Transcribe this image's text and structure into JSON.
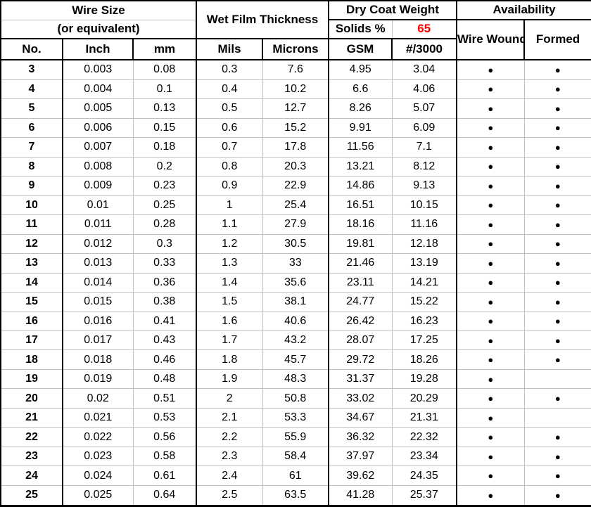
{
  "table": {
    "dot_char": "●",
    "colors": {
      "solids_value_color": "#ff0000",
      "grid_gray": "#c0c0c0",
      "line_black": "#000000",
      "background": "#ffffff"
    },
    "header": {
      "wire_size_line1": "Wire Size",
      "wire_size_line2": "(or equivalent)",
      "wet_film": "Wet Film Thickness",
      "dry_coat": "Dry Coat Weight",
      "solids_label": "Solids %",
      "solids_value": "65",
      "availability": "Availability",
      "col_no": "No.",
      "col_inch": "Inch",
      "col_mm": "mm",
      "col_mils": "Mils",
      "col_microns": "Microns",
      "col_gsm": "GSM",
      "col_per3000": "#/3000",
      "col_wire_wound": "Wire Wound",
      "col_formed": "Formed"
    },
    "rows": [
      {
        "no": "3",
        "inch": "0.003",
        "mm": "0.08",
        "mils": "0.3",
        "microns": "7.6",
        "gsm": "4.95",
        "per3000": "3.04",
        "wire_wound": true,
        "formed": true
      },
      {
        "no": "4",
        "inch": "0.004",
        "mm": "0.1",
        "mils": "0.4",
        "microns": "10.2",
        "gsm": "6.6",
        "per3000": "4.06",
        "wire_wound": true,
        "formed": true
      },
      {
        "no": "5",
        "inch": "0.005",
        "mm": "0.13",
        "mils": "0.5",
        "microns": "12.7",
        "gsm": "8.26",
        "per3000": "5.07",
        "wire_wound": true,
        "formed": true
      },
      {
        "no": "6",
        "inch": "0.006",
        "mm": "0.15",
        "mils": "0.6",
        "microns": "15.2",
        "gsm": "9.91",
        "per3000": "6.09",
        "wire_wound": true,
        "formed": true
      },
      {
        "no": "7",
        "inch": "0.007",
        "mm": "0.18",
        "mils": "0.7",
        "microns": "17.8",
        "gsm": "11.56",
        "per3000": "7.1",
        "wire_wound": true,
        "formed": true
      },
      {
        "no": "8",
        "inch": "0.008",
        "mm": "0.2",
        "mils": "0.8",
        "microns": "20.3",
        "gsm": "13.21",
        "per3000": "8.12",
        "wire_wound": true,
        "formed": true
      },
      {
        "no": "9",
        "inch": "0.009",
        "mm": "0.23",
        "mils": "0.9",
        "microns": "22.9",
        "gsm": "14.86",
        "per3000": "9.13",
        "wire_wound": true,
        "formed": true
      },
      {
        "no": "10",
        "inch": "0.01",
        "mm": "0.25",
        "mils": "1",
        "microns": "25.4",
        "gsm": "16.51",
        "per3000": "10.15",
        "wire_wound": true,
        "formed": true
      },
      {
        "no": "11",
        "inch": "0.011",
        "mm": "0.28",
        "mils": "1.1",
        "microns": "27.9",
        "gsm": "18.16",
        "per3000": "11.16",
        "wire_wound": true,
        "formed": true
      },
      {
        "no": "12",
        "inch": "0.012",
        "mm": "0.3",
        "mils": "1.2",
        "microns": "30.5",
        "gsm": "19.81",
        "per3000": "12.18",
        "wire_wound": true,
        "formed": true
      },
      {
        "no": "13",
        "inch": "0.013",
        "mm": "0.33",
        "mils": "1.3",
        "microns": "33",
        "gsm": "21.46",
        "per3000": "13.19",
        "wire_wound": true,
        "formed": true
      },
      {
        "no": "14",
        "inch": "0.014",
        "mm": "0.36",
        "mils": "1.4",
        "microns": "35.6",
        "gsm": "23.11",
        "per3000": "14.21",
        "wire_wound": true,
        "formed": true
      },
      {
        "no": "15",
        "inch": "0.015",
        "mm": "0.38",
        "mils": "1.5",
        "microns": "38.1",
        "gsm": "24.77",
        "per3000": "15.22",
        "wire_wound": true,
        "formed": true
      },
      {
        "no": "16",
        "inch": "0.016",
        "mm": "0.41",
        "mils": "1.6",
        "microns": "40.6",
        "gsm": "26.42",
        "per3000": "16.23",
        "wire_wound": true,
        "formed": true
      },
      {
        "no": "17",
        "inch": "0.017",
        "mm": "0.43",
        "mils": "1.7",
        "microns": "43.2",
        "gsm": "28.07",
        "per3000": "17.25",
        "wire_wound": true,
        "formed": true
      },
      {
        "no": "18",
        "inch": "0.018",
        "mm": "0.46",
        "mils": "1.8",
        "microns": "45.7",
        "gsm": "29.72",
        "per3000": "18.26",
        "wire_wound": true,
        "formed": true
      },
      {
        "no": "19",
        "inch": "0.019",
        "mm": "0.48",
        "mils": "1.9",
        "microns": "48.3",
        "gsm": "31.37",
        "per3000": "19.28",
        "wire_wound": true,
        "formed": false
      },
      {
        "no": "20",
        "inch": "0.02",
        "mm": "0.51",
        "mils": "2",
        "microns": "50.8",
        "gsm": "33.02",
        "per3000": "20.29",
        "wire_wound": true,
        "formed": true
      },
      {
        "no": "21",
        "inch": "0.021",
        "mm": "0.53",
        "mils": "2.1",
        "microns": "53.3",
        "gsm": "34.67",
        "per3000": "21.31",
        "wire_wound": true,
        "formed": false
      },
      {
        "no": "22",
        "inch": "0.022",
        "mm": "0.56",
        "mils": "2.2",
        "microns": "55.9",
        "gsm": "36.32",
        "per3000": "22.32",
        "wire_wound": true,
        "formed": true
      },
      {
        "no": "23",
        "inch": "0.023",
        "mm": "0.58",
        "mils": "2.3",
        "microns": "58.4",
        "gsm": "37.97",
        "per3000": "23.34",
        "wire_wound": true,
        "formed": true
      },
      {
        "no": "24",
        "inch": "0.024",
        "mm": "0.61",
        "mils": "2.4",
        "microns": "61",
        "gsm": "39.62",
        "per3000": "24.35",
        "wire_wound": true,
        "formed": true
      },
      {
        "no": "25",
        "inch": "0.025",
        "mm": "0.64",
        "mils": "2.5",
        "microns": "63.5",
        "gsm": "41.28",
        "per3000": "25.37",
        "wire_wound": true,
        "formed": true
      }
    ]
  }
}
